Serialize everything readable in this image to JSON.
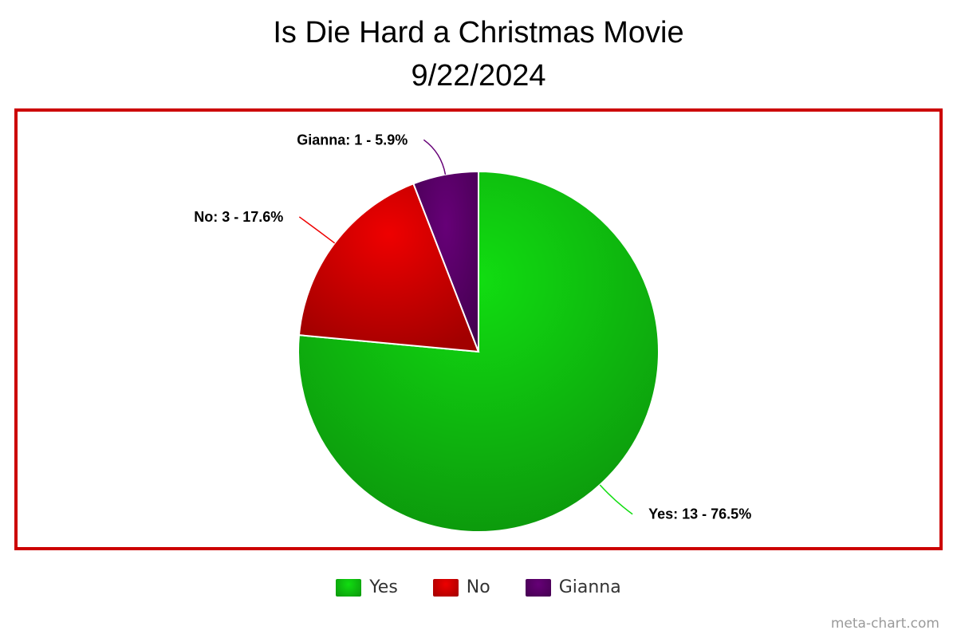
{
  "chart_data": {
    "type": "pie",
    "title": "Is Die Hard a Christmas Movie",
    "subtitle": "9/22/2024",
    "categories": [
      "Yes",
      "No",
      "Gianna"
    ],
    "values": [
      13,
      3,
      1
    ],
    "percentages": [
      76.5,
      17.6,
      5.9
    ],
    "data_labels": [
      "Yes: 13 - 76.5%",
      "No: 3 - 17.6%",
      "Gianna: 1 - 5.9%"
    ],
    "colors": [
      "#11dd11",
      "#ee0000",
      "#660077"
    ],
    "legend_placement": "bottom",
    "border_color": "#cc0000"
  },
  "watermark": "meta-chart.com"
}
